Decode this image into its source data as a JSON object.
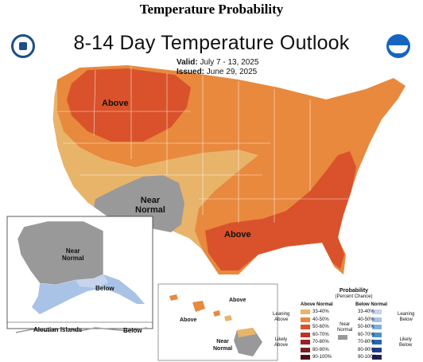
{
  "page_title": "Temperature Probability",
  "map": {
    "title": "8-14 Day Temperature Outlook",
    "valid_label": "Valid:",
    "valid_value": "July 7 - 13, 2025",
    "issued_label": "Issued:",
    "issued_value": "June 29, 2025"
  },
  "region_labels": {
    "north_above": "Above",
    "southwest_near_1": "Near",
    "southwest_near_2": "Normal",
    "southeast_above": "Above",
    "alaska_near_1": "Near",
    "alaska_near_2": "Normal",
    "alaska_below": "Below",
    "aleutian": "Aleutian Islands",
    "aleutian_below": "Below",
    "hawaii_above_1": "Above",
    "hawaii_above_2": "Above",
    "hawaii_near_1": "Near",
    "hawaii_near_2": "Normal"
  },
  "legend": {
    "title_1": "Probability",
    "title_2": "(Percent Chance)",
    "above_header": "Above Normal",
    "below_header": "Below Normal",
    "near_label_1": "Near",
    "near_label_2": "Normal",
    "leaning_above_1": "Leaning",
    "leaning_above_2": "Above",
    "likely_above_1": "Likely",
    "likely_above_2": "Above",
    "leaning_below_1": "Leaning",
    "leaning_below_2": "Below",
    "likely_below_1": "Likely",
    "likely_below_2": "Below",
    "above_bins": [
      {
        "label": "33-40%",
        "color": "#e8b46a"
      },
      {
        "label": "40-50%",
        "color": "#e8893e"
      },
      {
        "label": "50-60%",
        "color": "#d9522b"
      },
      {
        "label": "60-70%",
        "color": "#c0302a"
      },
      {
        "label": "70-80%",
        "color": "#9b1f26"
      },
      {
        "label": "80-90%",
        "color": "#7a1b22"
      },
      {
        "label": "90-100%",
        "color": "#4d0f16"
      }
    ],
    "below_bins": [
      {
        "label": "33-40%",
        "color": "#c6d4ec"
      },
      {
        "label": "40-50%",
        "color": "#a9c3e6"
      },
      {
        "label": "50-60%",
        "color": "#7fb0dd"
      },
      {
        "label": "60-70%",
        "color": "#4b8fcb"
      },
      {
        "label": "70-80%",
        "color": "#2468b2"
      },
      {
        "label": "80-90%",
        "color": "#1e3f8f"
      },
      {
        "label": "90-100%",
        "color": "#231f5e"
      }
    ],
    "near_color": "#999999"
  },
  "logos": {
    "left": "doc-seal-icon",
    "right": "noaa-logo-icon"
  }
}
